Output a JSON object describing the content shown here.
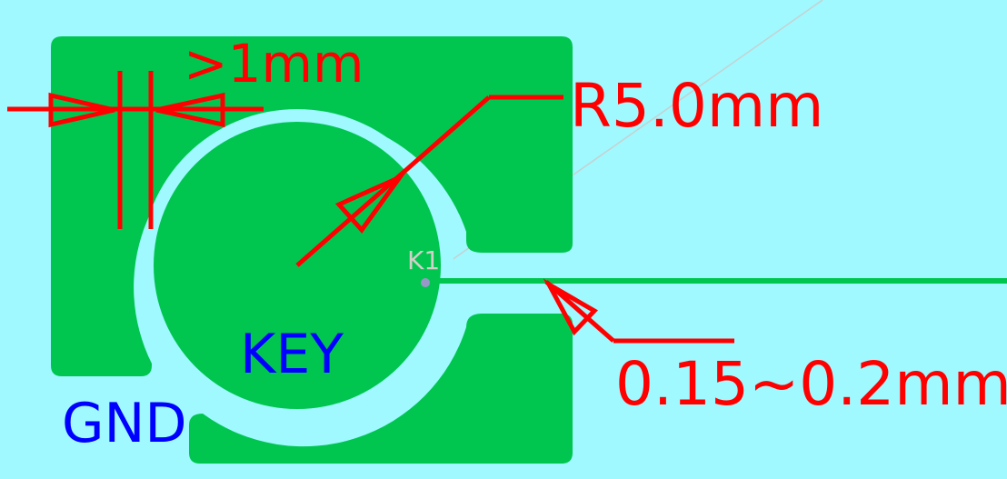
{
  "colors": {
    "background": "#9ff9ff",
    "copper": "#00c64f",
    "dimension": "#ff0000",
    "label_blue": "#0000ff",
    "silkscreen": "#d0d0c8",
    "guide_line": "#c8d0d0"
  },
  "labels": {
    "gap_min": ">1mm",
    "radius": "R5.0mm",
    "trace_gap": "0.15~0.2mm",
    "pad_net": "KEY",
    "ground_net": "GND",
    "reference": "K1"
  }
}
